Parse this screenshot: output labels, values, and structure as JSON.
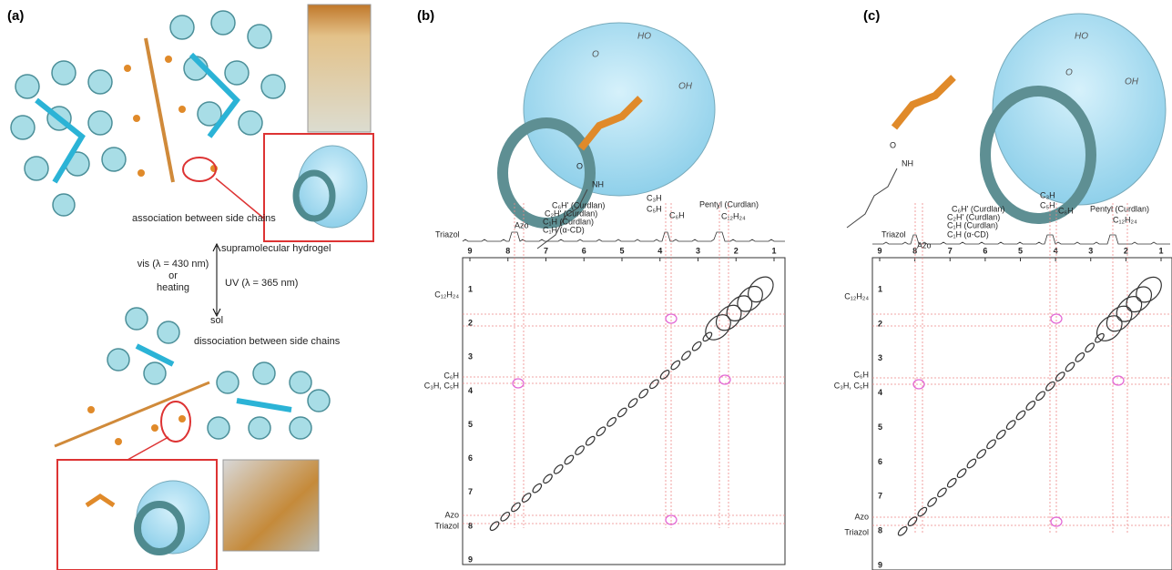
{
  "panel_a": {
    "label": "(a)",
    "caption_top": "association between side chains",
    "state_top": "supramolecular hydrogel",
    "stimulus_forward": [
      "vis (λ = 430 nm)",
      "or",
      "heating"
    ],
    "stimulus_reverse": "UV (λ = 365 nm)",
    "state_bottom": "sol",
    "caption_bottom": "dissociation between side chains"
  },
  "panel_b": {
    "label": "(b)",
    "peak_labels": [
      "Triazol",
      "Azo",
      "C₆H' (Curdlan)",
      "C₂H' (Curdlan)",
      "C₁H (Curdlan)",
      "C₁H (α-CD)",
      "C₃H",
      "C₅H",
      "C₆H",
      "Pentyl (Curdlan)",
      "C₁₂H₂₄"
    ],
    "x_ticks": [
      9,
      8,
      7,
      6,
      5,
      4,
      3,
      2,
      1
    ],
    "y_ticks": [
      1,
      2,
      3,
      4,
      5,
      6,
      7,
      8,
      9
    ],
    "row_labels": [
      "C₁₂H₂₄",
      "C₆H",
      "C₃H, C₅H",
      "Azo",
      "Triazol"
    ],
    "structure_labels": [
      "O",
      "NH"
    ],
    "cd_labels": [
      "HO",
      "OH",
      "O"
    ]
  },
  "panel_c": {
    "label": "(c)",
    "peak_labels": [
      "Triazol",
      "Azo",
      "C₆H' (Curdlan)",
      "C₂H' (Curdlan)",
      "C₁H (Curdlan)",
      "C₁H (α-CD)",
      "C₃H",
      "C₅H",
      "C₆H",
      "Pentyl (Curdlan)",
      "C₁₂H₂₄"
    ],
    "x_ticks": [
      9,
      8,
      7,
      6,
      5,
      4,
      3,
      2,
      1
    ],
    "y_ticks": [
      1,
      2,
      3,
      4,
      5,
      6,
      7,
      8,
      9
    ],
    "row_labels": [
      "C₁₂H₂₄",
      "C₆H",
      "C₃H, C₅H",
      "Azo",
      "Triazol"
    ],
    "structure_labels": [
      "O",
      "NH"
    ],
    "cd_labels": [
      "HO",
      "OH",
      "O"
    ]
  }
}
